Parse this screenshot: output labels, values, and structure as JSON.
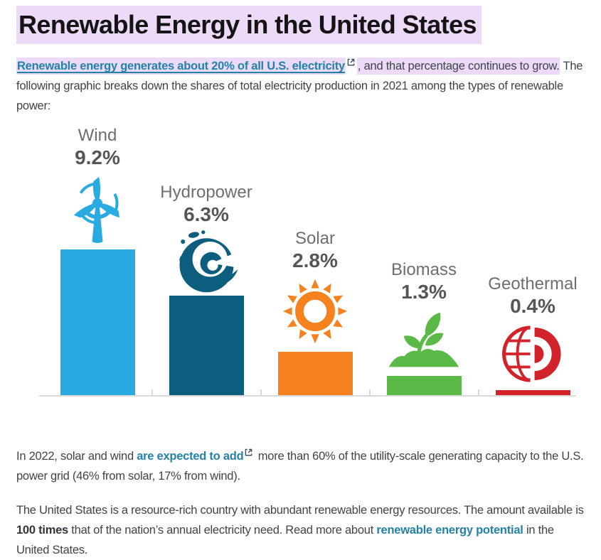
{
  "title": "Renewable Energy in the United States",
  "intro": {
    "link_text": "Renewable energy generates about 20% of all U.S. electricity",
    "highlight_continuation": ", and that percentage continues to grow.",
    "rest": " The following graphic breaks down the shares of total electricity production in 2021 among the types of renewable power:"
  },
  "chart_data": {
    "type": "bar",
    "context": "Shares of total U.S. electricity production in 2021 among renewable power types",
    "categories": [
      "Wind",
      "Hydropower",
      "Solar",
      "Biomass",
      "Geothermal"
    ],
    "values": [
      9.2,
      6.3,
      2.8,
      1.3,
      0.4
    ],
    "unit": "%",
    "ylim": [
      0,
      10
    ],
    "grid": false,
    "legend": false,
    "items": [
      {
        "label": "Wind",
        "value": 9.2,
        "display": "9.2%",
        "color": "#29abe2",
        "icon": "wind-turbine"
      },
      {
        "label": "Hydropower",
        "value": 6.3,
        "display": "6.3%",
        "color": "#0d5d7f",
        "icon": "ocean-wave"
      },
      {
        "label": "Solar",
        "value": 2.8,
        "display": "2.8%",
        "color": "#f5821f",
        "icon": "sun"
      },
      {
        "label": "Biomass",
        "value": 1.3,
        "display": "1.3%",
        "color": "#5bba47",
        "icon": "seedling"
      },
      {
        "label": "Geothermal",
        "value": 0.4,
        "display": "0.4%",
        "color": "#d2232a",
        "icon": "earth-cutaway"
      }
    ]
  },
  "para2": {
    "before": "In 2022, solar and wind ",
    "link_text": "are expected to add",
    "after": " more than 60% of the utility-scale generating capacity to the U.S. power grid (46% from solar, 17% from wind)."
  },
  "para3": {
    "before": "The United States is a resource-rich country with abundant renewable energy resources. The amount available is ",
    "bold": "100 times",
    "middle": " that of the nation’s annual electricity need. Read more about ",
    "link_text": "renewable energy potential",
    "after": " in the United States."
  },
  "colors": {
    "highlight": "#ecdaf8",
    "link": "#2382a8",
    "body_text": "#3f4449",
    "title_text": "#141414",
    "label_gray": "#6d6e71",
    "value_gray": "#55565a",
    "axis": "#d9d9da"
  }
}
